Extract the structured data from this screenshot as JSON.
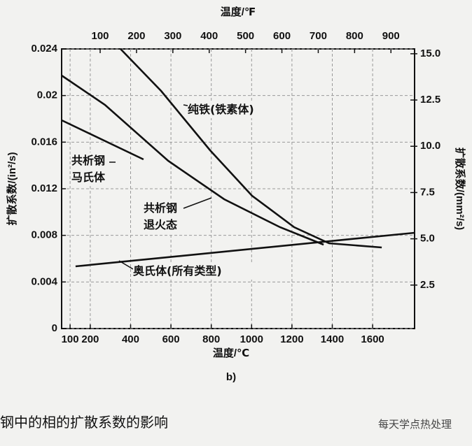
{
  "chart_data": {
    "type": "line",
    "x_label": "温度/℃",
    "x2_label": "温度/℉",
    "y_label": "扩散系数/(in²/s)",
    "y2_label": "扩散系数/(mm²/s)",
    "panel": "b)",
    "xlim": [
      58,
      1808
    ],
    "xticks": [
      100,
      200,
      400,
      600,
      800,
      1000,
      1200,
      1400,
      1600
    ],
    "x2lim": [
      -6,
      965
    ],
    "x2ticks": [
      100,
      200,
      300,
      400,
      500,
      600,
      700,
      800,
      900
    ],
    "ylim": [
      0,
      0.024
    ],
    "yticks": [
      0,
      0.004,
      0.008,
      0.012,
      0.016,
      0.02,
      0.024
    ],
    "y2lim": [
      0.15,
      15.26
    ],
    "y2ticks": [
      {
        "value": 2.5,
        "label": "2.5"
      },
      {
        "value": 5,
        "label": "5.0"
      },
      {
        "value": 7.5,
        "label": "7.5"
      },
      {
        "value": 10,
        "label": "10.0"
      },
      {
        "value": 12.5,
        "label": "12.5"
      },
      {
        "value": 15,
        "label": "15.0"
      }
    ],
    "grid": true,
    "color": "#111111",
    "series": [
      {
        "name": "纯铁(铁素体)",
        "x": [
          350,
          551,
          794,
          1002,
          1211,
          1384,
          1645
        ],
        "values": [
          0.024,
          0.0204,
          0.0153,
          0.0114,
          0.0087,
          0.00732,
          0.00696
        ]
      },
      {
        "name": "共析钢马氏体",
        "x": [
          58,
          464
        ],
        "values": [
          0.01788,
          0.01452
        ]
      },
      {
        "name": "共析钢退火态",
        "x": [
          58,
          273,
          586,
          864,
          1141,
          1357
        ],
        "values": [
          0.02172,
          0.0192,
          0.0144,
          0.0111,
          0.0087,
          0.0072
        ]
      },
      {
        "name": "奥氏体(所有类型)",
        "x": [
          127,
          1808
        ],
        "values": [
          0.00534,
          0.00822
        ]
      }
    ]
  },
  "caption": "钢中的相的扩散系数的影响",
  "watermark": "每天学点热处理"
}
